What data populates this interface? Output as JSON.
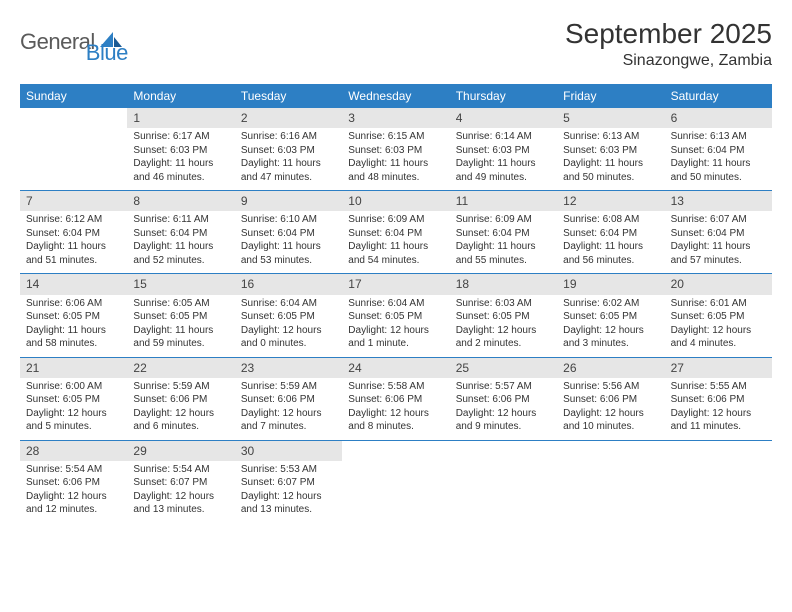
{
  "logo": {
    "text1": "General",
    "text2": "Blue"
  },
  "title": "September 2025",
  "location": "Sinazongwe, Zambia",
  "colors": {
    "header_bg": "#2d7fc4",
    "header_text": "#ffffff",
    "daynum_bg": "#e6e6e6",
    "rule": "#2d7fc4",
    "text": "#333333",
    "logo_gray": "#5a5a5a",
    "logo_blue": "#2d7fc4"
  },
  "day_headers": [
    "Sunday",
    "Monday",
    "Tuesday",
    "Wednesday",
    "Thursday",
    "Friday",
    "Saturday"
  ],
  "weeks": [
    [
      {
        "n": "",
        "rise": "",
        "set": "",
        "day": ""
      },
      {
        "n": "1",
        "rise": "Sunrise: 6:17 AM",
        "set": "Sunset: 6:03 PM",
        "day": "Daylight: 11 hours and 46 minutes."
      },
      {
        "n": "2",
        "rise": "Sunrise: 6:16 AM",
        "set": "Sunset: 6:03 PM",
        "day": "Daylight: 11 hours and 47 minutes."
      },
      {
        "n": "3",
        "rise": "Sunrise: 6:15 AM",
        "set": "Sunset: 6:03 PM",
        "day": "Daylight: 11 hours and 48 minutes."
      },
      {
        "n": "4",
        "rise": "Sunrise: 6:14 AM",
        "set": "Sunset: 6:03 PM",
        "day": "Daylight: 11 hours and 49 minutes."
      },
      {
        "n": "5",
        "rise": "Sunrise: 6:13 AM",
        "set": "Sunset: 6:03 PM",
        "day": "Daylight: 11 hours and 50 minutes."
      },
      {
        "n": "6",
        "rise": "Sunrise: 6:13 AM",
        "set": "Sunset: 6:04 PM",
        "day": "Daylight: 11 hours and 50 minutes."
      }
    ],
    [
      {
        "n": "7",
        "rise": "Sunrise: 6:12 AM",
        "set": "Sunset: 6:04 PM",
        "day": "Daylight: 11 hours and 51 minutes."
      },
      {
        "n": "8",
        "rise": "Sunrise: 6:11 AM",
        "set": "Sunset: 6:04 PM",
        "day": "Daylight: 11 hours and 52 minutes."
      },
      {
        "n": "9",
        "rise": "Sunrise: 6:10 AM",
        "set": "Sunset: 6:04 PM",
        "day": "Daylight: 11 hours and 53 minutes."
      },
      {
        "n": "10",
        "rise": "Sunrise: 6:09 AM",
        "set": "Sunset: 6:04 PM",
        "day": "Daylight: 11 hours and 54 minutes."
      },
      {
        "n": "11",
        "rise": "Sunrise: 6:09 AM",
        "set": "Sunset: 6:04 PM",
        "day": "Daylight: 11 hours and 55 minutes."
      },
      {
        "n": "12",
        "rise": "Sunrise: 6:08 AM",
        "set": "Sunset: 6:04 PM",
        "day": "Daylight: 11 hours and 56 minutes."
      },
      {
        "n": "13",
        "rise": "Sunrise: 6:07 AM",
        "set": "Sunset: 6:04 PM",
        "day": "Daylight: 11 hours and 57 minutes."
      }
    ],
    [
      {
        "n": "14",
        "rise": "Sunrise: 6:06 AM",
        "set": "Sunset: 6:05 PM",
        "day": "Daylight: 11 hours and 58 minutes."
      },
      {
        "n": "15",
        "rise": "Sunrise: 6:05 AM",
        "set": "Sunset: 6:05 PM",
        "day": "Daylight: 11 hours and 59 minutes."
      },
      {
        "n": "16",
        "rise": "Sunrise: 6:04 AM",
        "set": "Sunset: 6:05 PM",
        "day": "Daylight: 12 hours and 0 minutes."
      },
      {
        "n": "17",
        "rise": "Sunrise: 6:04 AM",
        "set": "Sunset: 6:05 PM",
        "day": "Daylight: 12 hours and 1 minute."
      },
      {
        "n": "18",
        "rise": "Sunrise: 6:03 AM",
        "set": "Sunset: 6:05 PM",
        "day": "Daylight: 12 hours and 2 minutes."
      },
      {
        "n": "19",
        "rise": "Sunrise: 6:02 AM",
        "set": "Sunset: 6:05 PM",
        "day": "Daylight: 12 hours and 3 minutes."
      },
      {
        "n": "20",
        "rise": "Sunrise: 6:01 AM",
        "set": "Sunset: 6:05 PM",
        "day": "Daylight: 12 hours and 4 minutes."
      }
    ],
    [
      {
        "n": "21",
        "rise": "Sunrise: 6:00 AM",
        "set": "Sunset: 6:05 PM",
        "day": "Daylight: 12 hours and 5 minutes."
      },
      {
        "n": "22",
        "rise": "Sunrise: 5:59 AM",
        "set": "Sunset: 6:06 PM",
        "day": "Daylight: 12 hours and 6 minutes."
      },
      {
        "n": "23",
        "rise": "Sunrise: 5:59 AM",
        "set": "Sunset: 6:06 PM",
        "day": "Daylight: 12 hours and 7 minutes."
      },
      {
        "n": "24",
        "rise": "Sunrise: 5:58 AM",
        "set": "Sunset: 6:06 PM",
        "day": "Daylight: 12 hours and 8 minutes."
      },
      {
        "n": "25",
        "rise": "Sunrise: 5:57 AM",
        "set": "Sunset: 6:06 PM",
        "day": "Daylight: 12 hours and 9 minutes."
      },
      {
        "n": "26",
        "rise": "Sunrise: 5:56 AM",
        "set": "Sunset: 6:06 PM",
        "day": "Daylight: 12 hours and 10 minutes."
      },
      {
        "n": "27",
        "rise": "Sunrise: 5:55 AM",
        "set": "Sunset: 6:06 PM",
        "day": "Daylight: 12 hours and 11 minutes."
      }
    ],
    [
      {
        "n": "28",
        "rise": "Sunrise: 5:54 AM",
        "set": "Sunset: 6:06 PM",
        "day": "Daylight: 12 hours and 12 minutes."
      },
      {
        "n": "29",
        "rise": "Sunrise: 5:54 AM",
        "set": "Sunset: 6:07 PM",
        "day": "Daylight: 12 hours and 13 minutes."
      },
      {
        "n": "30",
        "rise": "Sunrise: 5:53 AM",
        "set": "Sunset: 6:07 PM",
        "day": "Daylight: 12 hours and 13 minutes."
      },
      {
        "n": "",
        "rise": "",
        "set": "",
        "day": ""
      },
      {
        "n": "",
        "rise": "",
        "set": "",
        "day": ""
      },
      {
        "n": "",
        "rise": "",
        "set": "",
        "day": ""
      },
      {
        "n": "",
        "rise": "",
        "set": "",
        "day": ""
      }
    ]
  ]
}
